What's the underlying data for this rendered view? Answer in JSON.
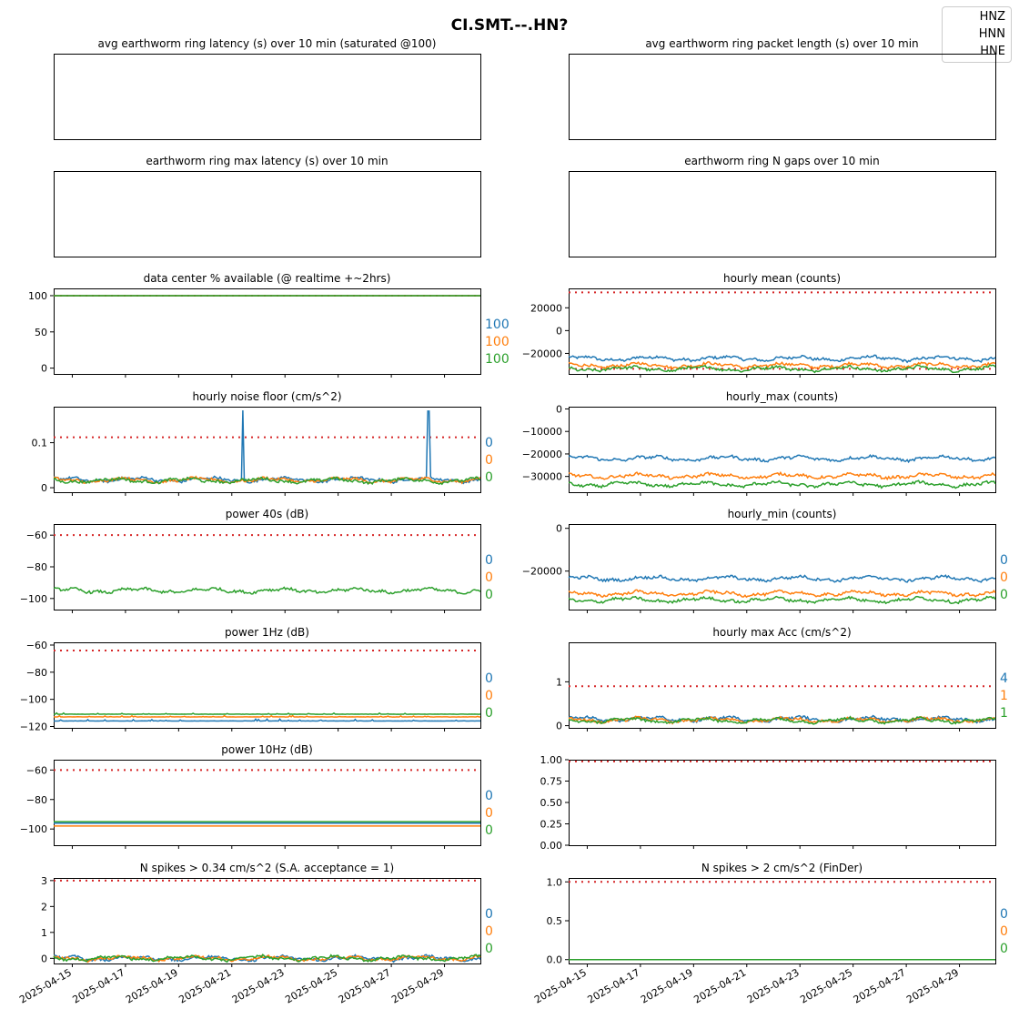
{
  "figure": {
    "title": "CI.SMT.--.HN?",
    "legend": [
      "HNZ",
      "HNN",
      "HNE"
    ],
    "colors": {
      "HNZ": "#1f77b4",
      "HNN": "#ff7f0e",
      "HNE": "#2ca02c",
      "threshold": "#d62728"
    },
    "x_axis": {
      "start": "2025-04-14",
      "end": "2025-04-30",
      "tick_labels": [
        "2025-04-15",
        "2025-04-17",
        "2025-04-19",
        "2025-04-21",
        "2025-04-23",
        "2025-04-25",
        "2025-04-27",
        "2025-04-29"
      ]
    }
  },
  "chart_data": [
    {
      "title": "avg earthworm ring latency (s)   over 10 min (saturated @100)",
      "type": "line",
      "series": [],
      "ticks": [],
      "annotations": []
    },
    {
      "title": "avg earthworm ring packet length (s)   over 10 min",
      "type": "line",
      "series": [],
      "ticks": [],
      "annotations": []
    },
    {
      "title": "earthworm ring max latency (s)   over 10 min",
      "type": "line",
      "series": [],
      "ticks": [],
      "annotations": []
    },
    {
      "title": "earthworm ring N gaps   over 10 min",
      "type": "line",
      "series": [],
      "ticks": [],
      "annotations": []
    },
    {
      "title": "data center % available (@ realtime +~2hrs)",
      "type": "line",
      "ylim": [
        -8,
        110
      ],
      "ticks": [
        0,
        50,
        100
      ],
      "threshold": 100,
      "series": [
        {
          "name": "HNZ",
          "level": 100
        },
        {
          "name": "HNN",
          "level": 100
        },
        {
          "name": "HNE",
          "level": 100
        }
      ],
      "annotations": [
        "100",
        "100",
        "100"
      ]
    },
    {
      "title": "hourly mean (counts)",
      "type": "line",
      "ylim": [
        -38000,
        37000
      ],
      "ticks": [
        -20000,
        0,
        20000
      ],
      "tick_labels": [
        "−20000",
        "0",
        "20000"
      ],
      "thresholds": [
        33500,
        -33500
      ],
      "series": [
        {
          "name": "HNZ",
          "level": -24500
        },
        {
          "name": "HNN",
          "level": -30500
        },
        {
          "name": "HNE",
          "level": -33500
        }
      ],
      "annotations": []
    },
    {
      "title": "hourly noise floor (cm/s^2)",
      "type": "line",
      "ylim": [
        -0.01,
        0.18
      ],
      "ticks": [
        0.0,
        0.1
      ],
      "threshold": 0.112,
      "series": [
        {
          "name": "HNZ",
          "level": 0.018
        },
        {
          "name": "HNN",
          "level": 0.017
        },
        {
          "name": "HNE",
          "level": 0.016
        }
      ],
      "spikes": [
        {
          "date": "2025-04-21.4",
          "value": 0.172
        },
        {
          "date": "2025-04-28.4",
          "value": 0.17
        }
      ],
      "annotations": [
        "0",
        "0",
        "0"
      ]
    },
    {
      "title": "hourly_max (counts)",
      "type": "line",
      "ylim": [
        -37000,
        1000
      ],
      "ticks": [
        -30000,
        -20000,
        -10000,
        0
      ],
      "tick_labels": [
        "−30000",
        "−20000",
        "−10000",
        "0"
      ],
      "series": [
        {
          "name": "HNZ",
          "level": -22000
        },
        {
          "name": "HNN",
          "level": -29800
        },
        {
          "name": "HNE",
          "level": -33500
        }
      ],
      "annotations": []
    },
    {
      "title": "power 40s (dB)",
      "type": "line",
      "ylim": [
        -107,
        -53
      ],
      "ticks": [
        -100,
        -80,
        -60
      ],
      "tick_labels": [
        "−100",
        "−80",
        "−60"
      ],
      "threshold": -60,
      "series": [
        {
          "name": "HNE",
          "level": -95
        }
      ],
      "annotations": [
        "0",
        "0",
        "0"
      ]
    },
    {
      "title": "hourly_min (counts)",
      "type": "line",
      "ylim": [
        -38000,
        2000
      ],
      "ticks": [
        -20000,
        0
      ],
      "tick_labels": [
        "−20000",
        "0"
      ],
      "series": [
        {
          "name": "HNZ",
          "level": -23500
        },
        {
          "name": "HNN",
          "level": -30500
        },
        {
          "name": "HNE",
          "level": -33500
        }
      ],
      "annotations": [
        "0",
        "0",
        "0"
      ]
    },
    {
      "title": "power 1Hz (dB)",
      "type": "line",
      "ylim": [
        -121,
        -58
      ],
      "ticks": [
        -120,
        -100,
        -80,
        -60
      ],
      "tick_labels": [
        "−120",
        "−100",
        "−80",
        "−60"
      ],
      "threshold": -64,
      "series": [
        {
          "name": "HNZ",
          "level": -116
        },
        {
          "name": "HNN",
          "level": -113
        },
        {
          "name": "HNE",
          "level": -111
        }
      ],
      "annotations": [
        "0",
        "0",
        "0"
      ]
    },
    {
      "title": "hourly max Acc (cm/s^2)",
      "type": "line",
      "ylim": [
        -0.05,
        1.9
      ],
      "ticks": [
        0,
        1
      ],
      "threshold": 0.9,
      "series": [
        {
          "name": "HNZ",
          "level": 0.15
        },
        {
          "name": "HNN",
          "level": 0.13
        },
        {
          "name": "HNE",
          "level": 0.12
        }
      ],
      "annotations": [
        "4",
        "1",
        "1"
      ]
    },
    {
      "title": "power 10Hz (dB)",
      "type": "line",
      "ylim": [
        -111,
        -53
      ],
      "ticks": [
        -100,
        -80,
        -60
      ],
      "tick_labels": [
        "−100",
        "−80",
        "−60"
      ],
      "threshold": -60,
      "series": [
        {
          "name": "HNZ",
          "level": -96
        },
        {
          "name": "HNN",
          "level": -98
        },
        {
          "name": "HNE",
          "level": -95
        }
      ],
      "annotations": [
        "0",
        "0",
        "0"
      ]
    },
    {
      "title": "",
      "type": "line",
      "ylim": [
        0,
        1
      ],
      "ticks": [
        0,
        0.25,
        0.5,
        0.75,
        1.0
      ],
      "tick_labels": [
        "0.00",
        "0.25",
        "0.50",
        "0.75",
        "1.00"
      ],
      "threshold": 0.98,
      "series": [],
      "annotations": []
    },
    {
      "title": "N spikes > 0.34 cm/s^2 (S.A. acceptance = 1)",
      "type": "line",
      "ylim": [
        -0.2,
        3.1
      ],
      "ticks": [
        0,
        1,
        2,
        3
      ],
      "threshold": 3,
      "series": [
        {
          "name": "HNZ",
          "level": 0
        },
        {
          "name": "HNN",
          "level": 0
        },
        {
          "name": "HNE",
          "level": 0
        }
      ],
      "annotations": [
        "0",
        "0",
        "0"
      ]
    },
    {
      "title": "N spikes > 2 cm/s^2 (FinDer)",
      "type": "line",
      "ylim": [
        -0.05,
        1.05
      ],
      "ticks": [
        0,
        0.5,
        1
      ],
      "tick_labels": [
        "0.0",
        "0.5",
        "1.0"
      ],
      "threshold": 1,
      "series": [
        {
          "name": "HNE",
          "level": 0
        }
      ],
      "annotations": [
        "0",
        "0",
        "0"
      ]
    }
  ]
}
